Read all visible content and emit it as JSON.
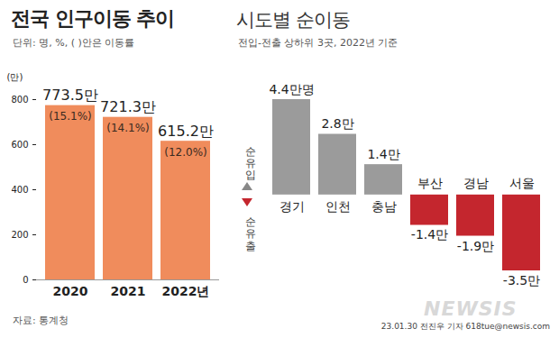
{
  "chart_data": [
    {
      "type": "bar",
      "title": "전국 인구이동 추이",
      "subtitle": "단위: 명, %, ( )안은 이동률",
      "categories": [
        "2020",
        "2021",
        "2022년"
      ],
      "values": [
        773.5,
        721.3,
        615.2
      ],
      "value_labels": [
        "773.5만",
        "721.3만",
        "615.2만"
      ],
      "rate_labels": [
        "(15.1%)",
        "(14.1%)",
        "(12.0%)"
      ],
      "y_label": "(만)",
      "ylim": [
        0,
        800
      ],
      "yticks": [
        0,
        200,
        400,
        600,
        800
      ],
      "color": "#f08c5c",
      "data_labels": true,
      "source": "자료: 통계청"
    },
    {
      "type": "bar",
      "title": "시도별 순이동",
      "subtitle": "전입-전출 상하위 3곳, 2022년 기준",
      "categories": [
        "경기",
        "인천",
        "충남",
        "부산",
        "경남",
        "서울"
      ],
      "values": [
        4.4,
        2.8,
        1.4,
        -1.4,
        -1.9,
        -3.5
      ],
      "value_labels": [
        "4.4만명",
        "2.8만",
        "1.4만",
        "-1.4만",
        "-1.9만",
        "-3.5만"
      ],
      "colors": [
        "#9b9b9b",
        "#9b9b9b",
        "#9b9b9b",
        "#c4262e",
        "#c4262e",
        "#c4262e"
      ],
      "data_labels": true,
      "tick_labels": "x",
      "inflow_label": "순유입",
      "outflow_label": "순유출"
    }
  ],
  "credit": "23.01.30 전진우 기자 618tue@newsis.com",
  "watermark": "NEWSIS"
}
